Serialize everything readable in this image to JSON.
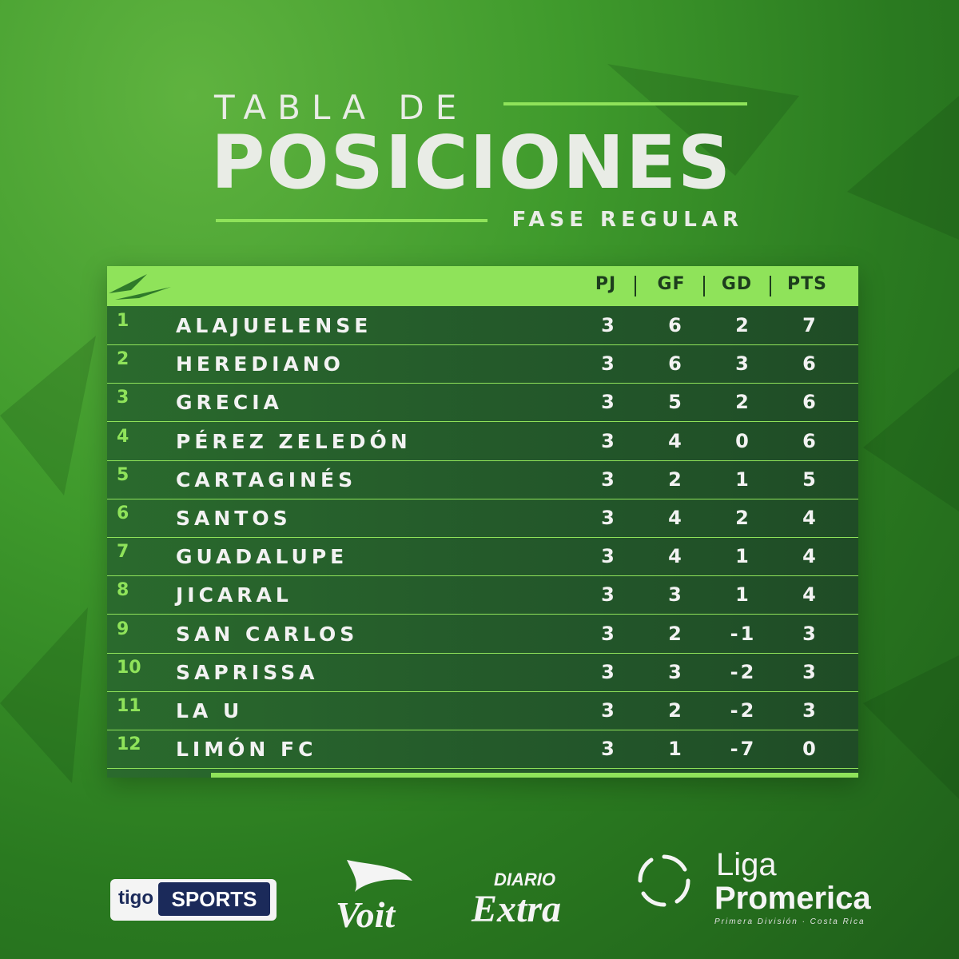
{
  "header": {
    "title_top": "TABLA DE",
    "title_main": "POSICIONES",
    "subtitle": "FASE REGULAR"
  },
  "colors": {
    "accent": "#8fe35a",
    "header_text": "#1d3d1d",
    "background": "#3f9a2c",
    "table_bg": "#23572a"
  },
  "table": {
    "columns": [
      "PJ",
      "GF",
      "GD",
      "PTS"
    ],
    "rows": [
      {
        "pos": "1",
        "team": "ALAJUELENSE",
        "pj": "3",
        "gf": "6",
        "gd": "2",
        "pts": "7"
      },
      {
        "pos": "2",
        "team": "HEREDIANO",
        "pj": "3",
        "gf": "6",
        "gd": "3",
        "pts": "6"
      },
      {
        "pos": "3",
        "team": "GRECIA",
        "pj": "3",
        "gf": "5",
        "gd": "2",
        "pts": "6"
      },
      {
        "pos": "4",
        "team": "PÉREZ ZELEDÓN",
        "pj": "3",
        "gf": "4",
        "gd": "0",
        "pts": "6"
      },
      {
        "pos": "5",
        "team": "CARTAGINÉS",
        "pj": "3",
        "gf": "2",
        "gd": "1",
        "pts": "5"
      },
      {
        "pos": "6",
        "team": "SANTOS",
        "pj": "3",
        "gf": "4",
        "gd": "2",
        "pts": "4"
      },
      {
        "pos": "7",
        "team": "GUADALUPE",
        "pj": "3",
        "gf": "4",
        "gd": "1",
        "pts": "4"
      },
      {
        "pos": "8",
        "team": "JICARAL",
        "pj": "3",
        "gf": "3",
        "gd": "1",
        "pts": "4"
      },
      {
        "pos": "9",
        "team": "SAN CARLOS",
        "pj": "3",
        "gf": "2",
        "gd": "-1",
        "pts": "3"
      },
      {
        "pos": "10",
        "team": "SAPRISSA",
        "pj": "3",
        "gf": "3",
        "gd": "-2",
        "pts": "3"
      },
      {
        "pos": "11",
        "team": "LA U",
        "pj": "3",
        "gf": "2",
        "gd": "-2",
        "pts": "3"
      },
      {
        "pos": "12",
        "team": "LIMÓN FC",
        "pj": "3",
        "gf": "1",
        "gd": "-7",
        "pts": "0"
      }
    ]
  },
  "sponsors": {
    "tigo_a": "tigo",
    "tigo_b": "SPORTS",
    "voit": "Voit",
    "diario": "DIARIO",
    "extra": "Extra",
    "liga_a": "Liga",
    "liga_b": "Promerica",
    "liga_c": "Primera División · Costa Rica"
  }
}
